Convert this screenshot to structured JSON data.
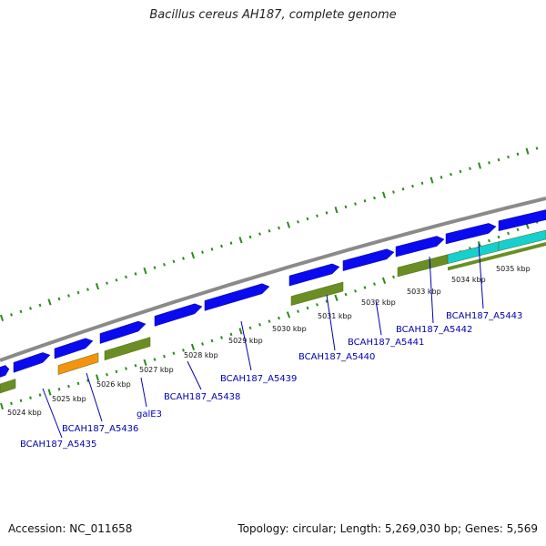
{
  "title": "Bacillus cereus AH187, complete genome",
  "footer": {
    "accession": "Accession: NC_011658",
    "summary": "Topology: circular; Length: 5,269,030 bp; Genes: 5,569"
  },
  "colors": {
    "forward_cds": "#0a0af0",
    "reverse_cds": "#6a8e23",
    "orange_feature": "#f5930f",
    "cyan_feature": "#18cfd0",
    "tick_green": "#2a8a1a",
    "backbone": "#8a8a8a",
    "gene_label": "#0000b4"
  },
  "scale_ticks": [
    "5024 kbp",
    "5025 kbp",
    "5026 kbp",
    "5027 kbp",
    "5028 kbp",
    "5029 kbp",
    "5030 kbp",
    "5031 kbp",
    "5032 kbp",
    "5033 kbp",
    "5034 kbp",
    "5035 kbp"
  ],
  "gene_labels": [
    "BCAH187_A5435",
    "BCAH187_A5436",
    "galE3",
    "BCAH187_A5438",
    "BCAH187_A5439",
    "BCAH187_A5440",
    "BCAH187_A5441",
    "BCAH187_A5442",
    "BCAH187_A5443"
  ]
}
